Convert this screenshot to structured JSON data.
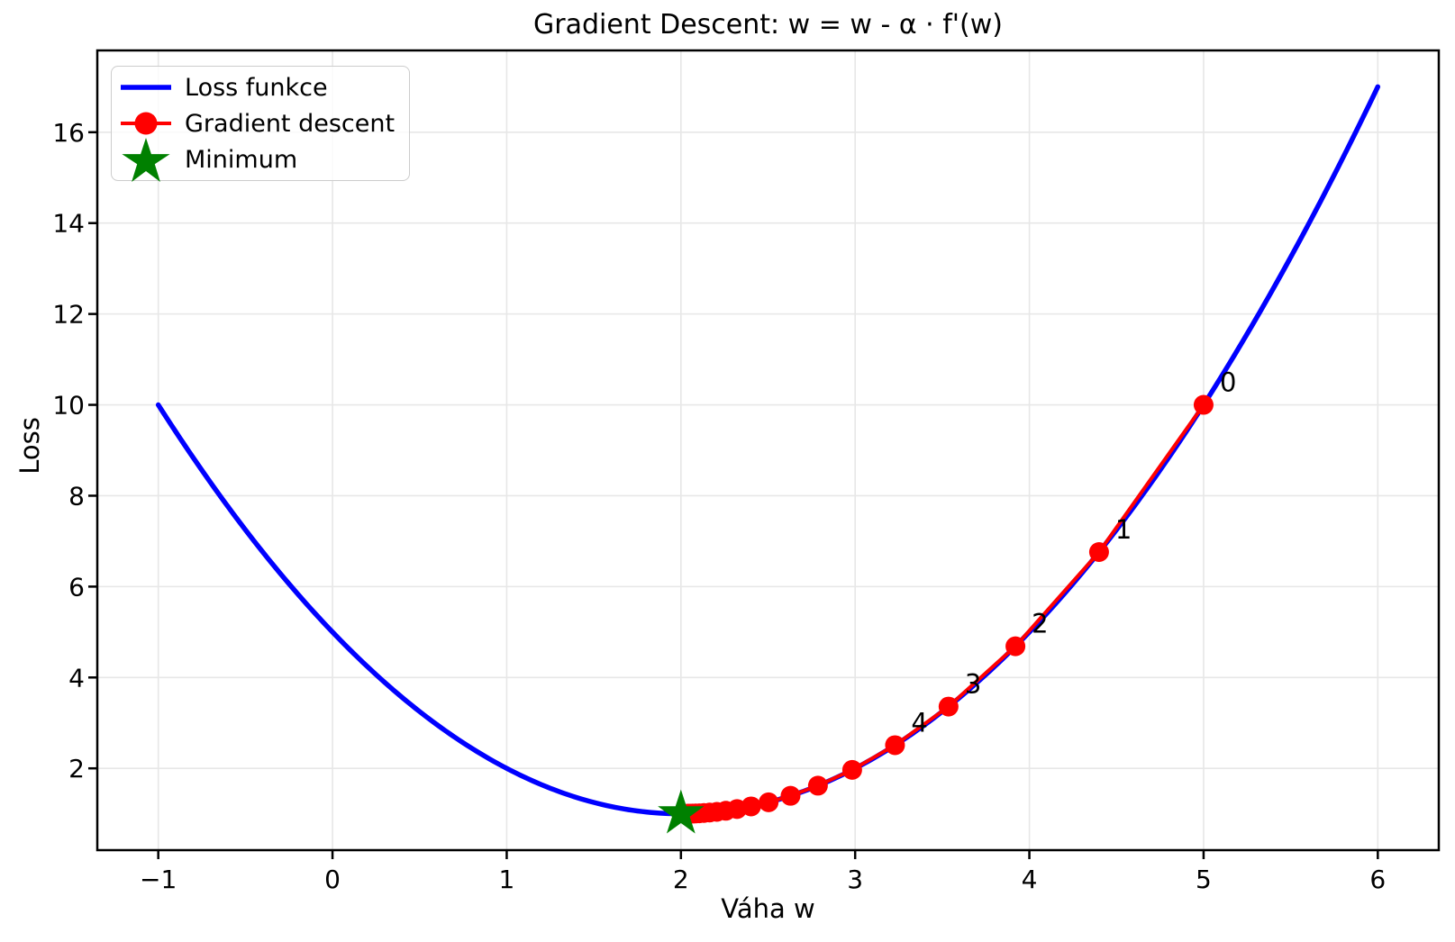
{
  "chart_data": {
    "type": "line",
    "title": "Gradient Descent: w = w - α · f'(w)",
    "xlabel": "Váha w",
    "ylabel": "Loss",
    "xlim": [
      -1.35,
      6.35
    ],
    "ylim": [
      0.2,
      17.8
    ],
    "x_ticks": [
      -1,
      0,
      1,
      2,
      3,
      4,
      5,
      6
    ],
    "y_ticks": [
      2,
      4,
      6,
      8,
      10,
      12,
      14,
      16
    ],
    "grid": true,
    "grid_color": "#e7e7e7",
    "background": "#ffffff",
    "loss_curve": {
      "name": "Loss funkce",
      "color": "#0000ff",
      "function": "loss(w) = (w - 2)^2 + 1",
      "coeffs": {
        "a": 1,
        "w0": 2,
        "c": 1
      },
      "domain": [
        -1,
        6
      ]
    },
    "gradient_descent": {
      "name": "Gradient descent",
      "color": "#ff0000",
      "points": [
        [
          5.0,
          10.0
        ],
        [
          4.4,
          6.76
        ],
        [
          3.92,
          4.6864
        ],
        [
          3.536,
          3.3593
        ],
        [
          3.2288,
          2.5099
        ],
        [
          2.983,
          1.9664
        ],
        [
          2.7864,
          1.6185
        ],
        [
          2.6291,
          1.3958
        ],
        [
          2.5033,
          1.2533
        ],
        [
          2.4027,
          1.1621
        ],
        [
          2.3221,
          1.1038
        ],
        [
          2.2577,
          1.0664
        ],
        [
          2.2062,
          1.0425
        ],
        [
          2.1649,
          1.0272
        ],
        [
          2.1319,
          1.0174
        ],
        [
          2.1056,
          1.0111
        ],
        [
          2.0844,
          1.0071
        ],
        [
          2.0676,
          1.0046
        ],
        [
          2.054,
          1.0029
        ],
        [
          2.0432,
          1.0019
        ],
        [
          2.0346,
          1.0012
        ]
      ]
    },
    "minimum": {
      "name": "Minimum",
      "color": "#008000",
      "point": [
        2,
        1
      ]
    },
    "annotations": [
      {
        "label": "0",
        "x": 5.0,
        "y": 10.0
      },
      {
        "label": "1",
        "x": 4.4,
        "y": 6.76
      },
      {
        "label": "2",
        "x": 3.92,
        "y": 4.6864
      },
      {
        "label": "3",
        "x": 3.536,
        "y": 3.3593
      },
      {
        "label": "4",
        "x": 3.2288,
        "y": 2.5099
      }
    ]
  },
  "legend": {
    "items": [
      {
        "label": "Loss funkce",
        "color": "#0000ff",
        "marker": "line"
      },
      {
        "label": "Gradient descent",
        "color": "#ff0000",
        "marker": "line-dot"
      },
      {
        "label": "Minimum",
        "color": "#008000",
        "marker": "star"
      }
    ]
  }
}
